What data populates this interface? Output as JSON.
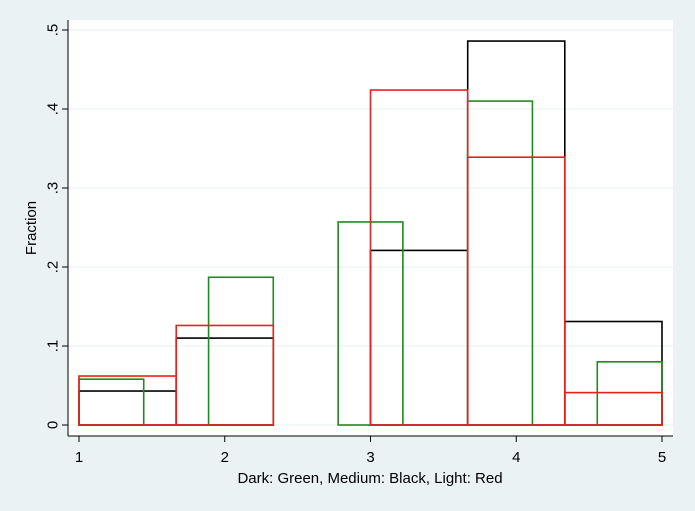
{
  "chart_data": {
    "type": "bar",
    "subtype": "overlaid-histogram",
    "title": "",
    "xlabel": "Dark: Green, Medium: Black, Light: Red",
    "ylabel": "Fraction",
    "xlim": [
      1,
      5
    ],
    "ylim": [
      0,
      0.5
    ],
    "xticks": [
      1,
      2,
      3,
      4,
      5
    ],
    "xtick_labels": [
      "1",
      "2",
      "3",
      "4",
      "5"
    ],
    "yticks": [
      0,
      0.1,
      0.2,
      0.3,
      0.4,
      0.5
    ],
    "ytick_labels": [
      "0",
      ".1",
      ".2",
      ".3",
      ".4",
      ".5"
    ],
    "grid": true,
    "legend": null,
    "series": [
      {
        "name": "Medium",
        "color": "#000000",
        "bins": [
          {
            "x0": 1.0,
            "x1": 1.667,
            "value": 0.043
          },
          {
            "x0": 1.667,
            "x1": 2.333,
            "value": 0.11
          },
          {
            "x0": 3.0,
            "x1": 3.667,
            "value": 0.221
          },
          {
            "x0": 3.667,
            "x1": 4.333,
            "value": 0.486
          },
          {
            "x0": 4.333,
            "x1": 5.0,
            "value": 0.131
          }
        ]
      },
      {
        "name": "Dark",
        "color": "#1f8a1f",
        "bins": [
          {
            "x0": 1.0,
            "x1": 1.444,
            "value": 0.058
          },
          {
            "x0": 1.889,
            "x1": 2.333,
            "value": 0.187
          },
          {
            "x0": 2.778,
            "x1": 3.222,
            "value": 0.257
          },
          {
            "x0": 3.667,
            "x1": 4.111,
            "value": 0.41
          },
          {
            "x0": 4.556,
            "x1": 5.0,
            "value": 0.08
          }
        ]
      },
      {
        "name": "Light",
        "color": "#e8211c",
        "bins": [
          {
            "x0": 1.0,
            "x1": 1.667,
            "value": 0.062
          },
          {
            "x0": 1.667,
            "x1": 2.333,
            "value": 0.126
          },
          {
            "x0": 3.0,
            "x1": 3.667,
            "value": 0.424
          },
          {
            "x0": 3.667,
            "x1": 4.333,
            "value": 0.339
          },
          {
            "x0": 4.333,
            "x1": 5.0,
            "value": 0.041
          }
        ]
      }
    ]
  },
  "style": {
    "outer_bg": "#eaf2f3",
    "plot_bg": "#ffffff",
    "grid_color": "#e6eff1",
    "axis_color": "#000000"
  }
}
